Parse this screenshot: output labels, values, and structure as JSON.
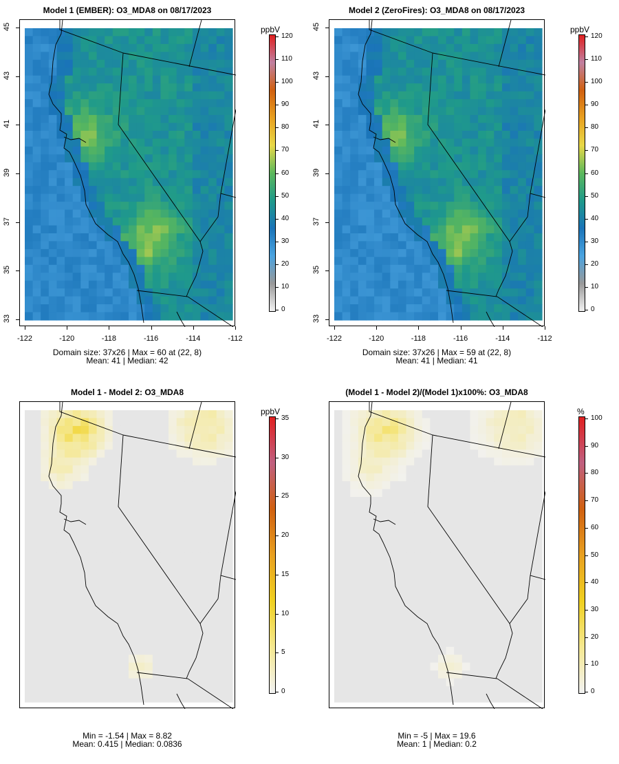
{
  "panels": [
    {
      "title": "Model 1 (EMBER): O3_MDA8 on 08/17/2023",
      "unit": "ppbV",
      "x_ticks": [
        "-122",
        "-120",
        "-118",
        "-116",
        "-114",
        "-112"
      ],
      "y_ticks": [
        "33",
        "35",
        "37",
        "39",
        "41",
        "43",
        "45"
      ],
      "colorbar_ticks": [
        "0",
        "10",
        "20",
        "30",
        "40",
        "50",
        "60",
        "70",
        "80",
        "90",
        "100",
        "110",
        "120"
      ],
      "stats_line1": "Domain size: 37x26 | Max = 60 at (22, 8)",
      "stats_line2": "Mean: 41 |  Median: 42",
      "field": "ozone"
    },
    {
      "title": "Model 2 (ZeroFires): O3_MDA8 on 08/17/2023",
      "unit": "ppbV",
      "x_ticks": [
        "-122",
        "-120",
        "-118",
        "-116",
        "-114",
        "-112"
      ],
      "y_ticks": [
        "33",
        "35",
        "37",
        "39",
        "41",
        "43",
        "45"
      ],
      "colorbar_ticks": [
        "0",
        "10",
        "20",
        "30",
        "40",
        "50",
        "60",
        "70",
        "80",
        "90",
        "100",
        "110",
        "120"
      ],
      "stats_line1": "Domain size: 37x26 | Max = 59 at (22, 8)",
      "stats_line2": "Mean: 41 |  Median: 41",
      "field": "ozone"
    },
    {
      "title": "Model 1 - Model 2: O3_MDA8",
      "unit": "ppbV",
      "x_ticks": [],
      "y_ticks": [],
      "colorbar_ticks": [
        "0",
        "5",
        "10",
        "15",
        "20",
        "25",
        "30",
        "35"
      ],
      "stats_line1": "Min = -1.54 | Max = 8.82",
      "stats_line2": "Mean: 0.415 |  Median: 0.0836",
      "field": "diff"
    },
    {
      "title": "(Model 1 - Model 2)/(Model 1)x100%: O3_MDA8",
      "unit": "%",
      "x_ticks": [],
      "y_ticks": [],
      "colorbar_ticks": [
        "0",
        "10",
        "20",
        "30",
        "40",
        "50",
        "60",
        "70",
        "80",
        "90",
        "100"
      ],
      "stats_line1": "Min = -5 | Max = 19.6",
      "stats_line2": "Mean: 1 |  Median: 0.2",
      "field": "pct"
    }
  ],
  "colors": {
    "ozone_scale": [
      "#f2f2f2",
      "#999999",
      "#4aa3e0",
      "#1a74b8",
      "#1f9a8a",
      "#5cb85c",
      "#e8d848",
      "#e8a020",
      "#d06010",
      "#c080a0",
      "#e02020"
    ],
    "diff_scale": [
      "#f2f2f2",
      "#f5e890",
      "#f0d020",
      "#e8a020",
      "#d06010",
      "#c06080",
      "#e02020"
    ],
    "domain_gray": "#e6e6e6"
  }
}
